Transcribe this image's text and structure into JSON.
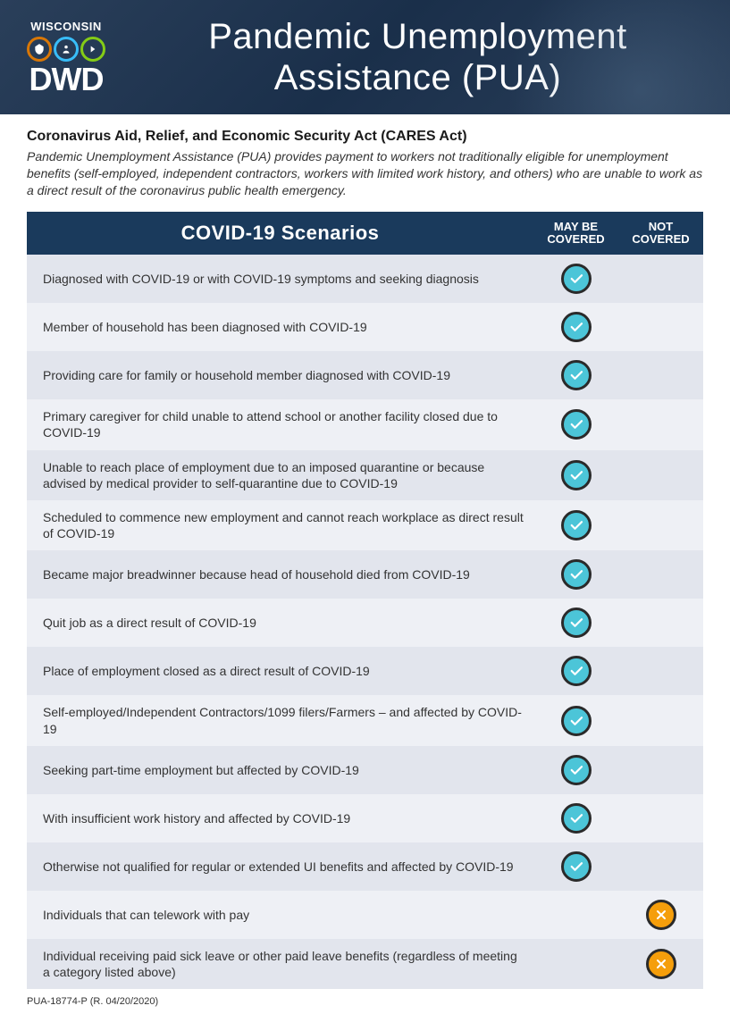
{
  "header": {
    "state": "WISCONSIN",
    "dwd": "DWD",
    "title": "Pandemic Unemployment Assistance (PUA)"
  },
  "intro": {
    "heading": "Coronavirus Aid, Relief, and Economic Security Act (CARES Act)",
    "text": "Pandemic Unemployment Assistance (PUA) provides payment to workers not traditionally eligible for unemployment benefits (self-employed, independent contractors, workers with limited work history, and others) who are unable to work as a direct result of the coronavirus public health emergency."
  },
  "table": {
    "columns": {
      "scenarios": "COVID-19 Scenarios",
      "covered": "MAY BE COVERED",
      "not_covered": "NOT COVERED"
    },
    "rows": [
      {
        "scenario": "Diagnosed with COVID-19 or with COVID-19 symptoms and seeking diagnosis",
        "covered": true,
        "not_covered": false
      },
      {
        "scenario": "Member of household has been diagnosed with COVID-19",
        "covered": true,
        "not_covered": false
      },
      {
        "scenario": "Providing care for family or household member diagnosed with COVID-19",
        "covered": true,
        "not_covered": false
      },
      {
        "scenario": "Primary caregiver for child unable to attend school or another facility closed due to COVID-19",
        "covered": true,
        "not_covered": false
      },
      {
        "scenario": "Unable to reach place of employment due to an imposed quarantine or because advised by medical provider to self-quarantine due to COVID-19",
        "covered": true,
        "not_covered": false
      },
      {
        "scenario": "Scheduled to commence new employment and cannot reach workplace as direct result of COVID-19",
        "covered": true,
        "not_covered": false
      },
      {
        "scenario": "Became major breadwinner because head of household died from COVID-19",
        "covered": true,
        "not_covered": false
      },
      {
        "scenario": "Quit job as a direct result of COVID-19",
        "covered": true,
        "not_covered": false
      },
      {
        "scenario": "Place of employment closed as a direct result of COVID-19",
        "covered": true,
        "not_covered": false
      },
      {
        "scenario": "Self-employed/Independent Contractors/1099 filers/Farmers – and affected by COVID-19",
        "covered": true,
        "not_covered": false
      },
      {
        "scenario": "Seeking part-time employment but affected by COVID-19",
        "covered": true,
        "not_covered": false
      },
      {
        "scenario": "With insufficient work history and affected by COVID-19",
        "covered": true,
        "not_covered": false
      },
      {
        "scenario": "Otherwise not qualified for regular or extended UI benefits and affected by COVID-19",
        "covered": true,
        "not_covered": false
      },
      {
        "scenario": "Individuals that can telework with pay",
        "covered": false,
        "not_covered": true
      },
      {
        "scenario": "Individual receiving paid sick leave or other paid leave benefits (regardless of meeting a category listed above)",
        "covered": false,
        "not_covered": true
      }
    ],
    "colors": {
      "header_bg": "#1a3a5c",
      "row_odd": "#e2e5ed",
      "row_even": "#eef0f5",
      "check_fill": "#4cc5d8",
      "x_fill": "#f59e0b",
      "icon_border": "#2a2a2a"
    }
  },
  "footnote": "PUA-18774-P (R. 04/20/2020)"
}
